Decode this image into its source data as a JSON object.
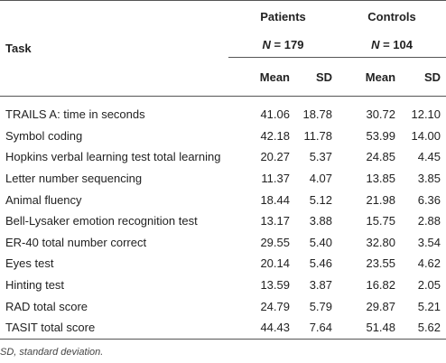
{
  "table": {
    "task_header": "Task",
    "groups": [
      {
        "name": "Patients",
        "n_label": "N",
        "n_eq": " = ",
        "n_value": "179"
      },
      {
        "name": "Controls",
        "n_label": "N",
        "n_eq": " = ",
        "n_value": "104"
      }
    ],
    "subheaders": [
      "Mean",
      "SD",
      "Mean",
      "SD"
    ],
    "rows": [
      {
        "task": "TRAILS A: time in seconds",
        "p_mean": "41.06",
        "p_sd": "18.78",
        "c_mean": "30.72",
        "c_sd": "12.10"
      },
      {
        "task": "Symbol coding",
        "p_mean": "42.18",
        "p_sd": "11.78",
        "c_mean": "53.99",
        "c_sd": "14.00"
      },
      {
        "task": "Hopkins verbal learning test total learning",
        "p_mean": "20.27",
        "p_sd": "5.37",
        "c_mean": "24.85",
        "c_sd": "4.45"
      },
      {
        "task": "Letter number sequencing",
        "p_mean": "11.37",
        "p_sd": "4.07",
        "c_mean": "13.85",
        "c_sd": "3.85"
      },
      {
        "task": "Animal fluency",
        "p_mean": "18.44",
        "p_sd": "5.12",
        "c_mean": "21.98",
        "c_sd": "6.36"
      },
      {
        "task": "Bell-Lysaker emotion recognition test",
        "p_mean": "13.17",
        "p_sd": "3.88",
        "c_mean": "15.75",
        "c_sd": "2.88"
      },
      {
        "task": "ER-40 total number correct",
        "p_mean": "29.55",
        "p_sd": "5.40",
        "c_mean": "32.80",
        "c_sd": "3.54"
      },
      {
        "task": "Eyes test",
        "p_mean": "20.14",
        "p_sd": "5.46",
        "c_mean": "23.55",
        "c_sd": "4.62"
      },
      {
        "task": "Hinting test",
        "p_mean": "13.59",
        "p_sd": "3.87",
        "c_mean": "16.82",
        "c_sd": "2.05"
      },
      {
        "task": "RAD total score",
        "p_mean": "24.79",
        "p_sd": "5.79",
        "c_mean": "29.87",
        "c_sd": "5.21"
      },
      {
        "task": "TASIT total score",
        "p_mean": "44.43",
        "p_sd": "7.64",
        "c_mean": "51.48",
        "c_sd": "5.62"
      }
    ],
    "footnote": "SD, standard deviation."
  }
}
